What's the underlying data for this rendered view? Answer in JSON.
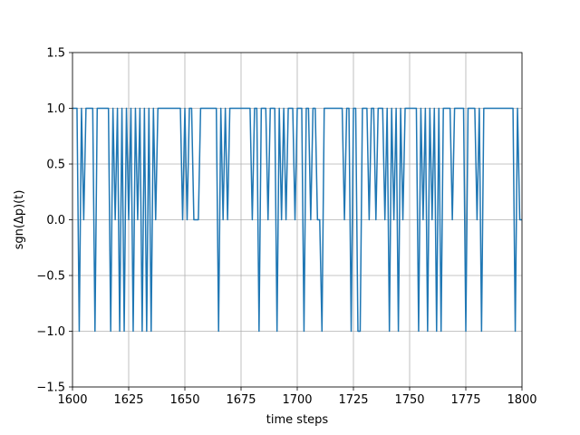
{
  "chart_data": {
    "type": "line",
    "title": "",
    "xlabel": "time steps",
    "ylabel": "sgn(Δp)(t)",
    "xlim": [
      1600,
      1800
    ],
    "ylim": [
      -1.5,
      1.5
    ],
    "xticks": [
      1600,
      1625,
      1650,
      1675,
      1700,
      1725,
      1750,
      1775,
      1800
    ],
    "yticks": [
      -1.5,
      -1.0,
      -0.5,
      0.0,
      0.5,
      1.0,
      1.5
    ],
    "xtick_labels": [
      "1600",
      "1625",
      "1650",
      "1675",
      "1700",
      "1725",
      "1750",
      "1775",
      "1800"
    ],
    "ytick_labels": [
      "−1.5",
      "−1.0",
      "−0.5",
      "0.0",
      "0.5",
      "1.0",
      "1.5"
    ],
    "grid": true,
    "series": [
      {
        "color": "#1f77b4",
        "x_start": 1600,
        "x_step": 1,
        "values": [
          1,
          1,
          1,
          -1,
          1,
          0,
          1,
          1,
          1,
          1,
          -1,
          1,
          1,
          1,
          1,
          1,
          1,
          -1,
          1,
          0,
          1,
          -1,
          1,
          -1,
          1,
          0,
          1,
          -1,
          1,
          0,
          1,
          -1,
          1,
          -1,
          1,
          -1,
          1,
          0,
          1,
          1,
          1,
          1,
          1,
          1,
          1,
          1,
          1,
          1,
          1,
          0,
          1,
          0,
          1,
          1,
          0,
          0,
          0,
          1,
          1,
          1,
          1,
          1,
          1,
          1,
          1,
          -1,
          1,
          0,
          1,
          0,
          1,
          1,
          1,
          1,
          1,
          1,
          1,
          1,
          1,
          1,
          0,
          1,
          1,
          -1,
          1,
          1,
          1,
          0,
          1,
          1,
          1,
          -1,
          1,
          0,
          1,
          0,
          1,
          1,
          1,
          0,
          1,
          1,
          1,
          -1,
          1,
          1,
          0,
          1,
          1,
          0,
          0,
          -1,
          1,
          1,
          1,
          1,
          1,
          1,
          1,
          1,
          1,
          0,
          1,
          1,
          -1,
          1,
          1,
          -1,
          -1,
          1,
          1,
          1,
          0,
          1,
          1,
          0,
          1,
          1,
          1,
          0,
          1,
          -1,
          1,
          0,
          1,
          -1,
          1,
          0,
          1,
          1,
          1,
          1,
          1,
          1,
          -1,
          1,
          0,
          1,
          -1,
          1,
          0,
          1,
          -1,
          1,
          -1,
          1,
          1,
          1,
          1,
          0,
          1,
          1,
          1,
          1,
          1,
          -1,
          1,
          1,
          1,
          1,
          0,
          1,
          -1,
          1,
          1,
          1,
          1,
          1,
          1,
          1,
          1,
          1,
          1,
          1,
          1,
          1,
          1,
          -1,
          1,
          0,
          0
        ]
      }
    ]
  }
}
